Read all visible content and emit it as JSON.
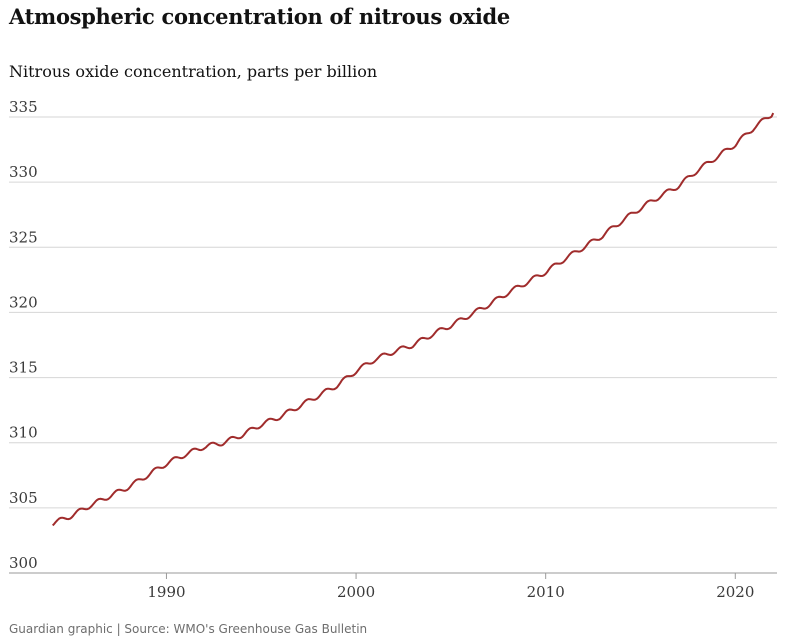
{
  "header": {
    "title": "Atmospheric concentration of nitrous oxide",
    "subtitle": "Nitrous oxide concentration, parts per billion"
  },
  "footer": {
    "text": "Guardian graphic | Source: WMO's Greenhouse Gas Bulletin"
  },
  "colors": {
    "series": "#a02c2c",
    "grid": "#d6d6d6",
    "text": "#121212"
  },
  "chart_data": {
    "type": "line",
    "title": "Atmospheric concentration of nitrous oxide",
    "ylabel": "Nitrous oxide concentration, parts per billion",
    "xlabel": "",
    "xlim": [
      1983.7,
      2022.2
    ],
    "ylim": [
      300,
      335
    ],
    "yticks": [
      "300",
      "305",
      "310",
      "315",
      "320",
      "325",
      "330",
      "335"
    ],
    "xticks": [
      "1990",
      "2000",
      "2010",
      "2020"
    ],
    "grid": true,
    "series": [
      {
        "x": [
          1984.0,
          1985.0,
          1986.0,
          1987.0,
          1988.0,
          1989.0,
          1990.0,
          1991.0,
          1992.0,
          1993.0,
          1994.0,
          1995.0,
          1996.0,
          1997.0,
          1998.0,
          1999.0,
          2000.0,
          2001.0,
          2002.0,
          2003.0,
          2004.0,
          2005.0,
          2006.0,
          2007.0,
          2008.0,
          2009.0,
          2010.0,
          2011.0,
          2012.0,
          2013.0,
          2014.0,
          2015.0,
          2016.0,
          2017.0,
          2018.0,
          2019.0,
          2020.0,
          2021.0,
          2022.0
        ],
        "y": [
          303.8,
          304.4,
          305.2,
          305.9,
          306.6,
          307.5,
          308.4,
          309.1,
          309.7,
          310.0,
          310.6,
          311.4,
          312.0,
          312.8,
          313.6,
          314.4,
          315.5,
          316.4,
          317.0,
          317.5,
          318.3,
          319.0,
          319.8,
          320.6,
          321.5,
          322.3,
          323.1,
          324.1,
          325.0,
          325.9,
          327.0,
          328.0,
          328.9,
          329.7,
          330.9,
          331.9,
          332.9,
          334.2,
          335.3
        ]
      }
    ]
  }
}
